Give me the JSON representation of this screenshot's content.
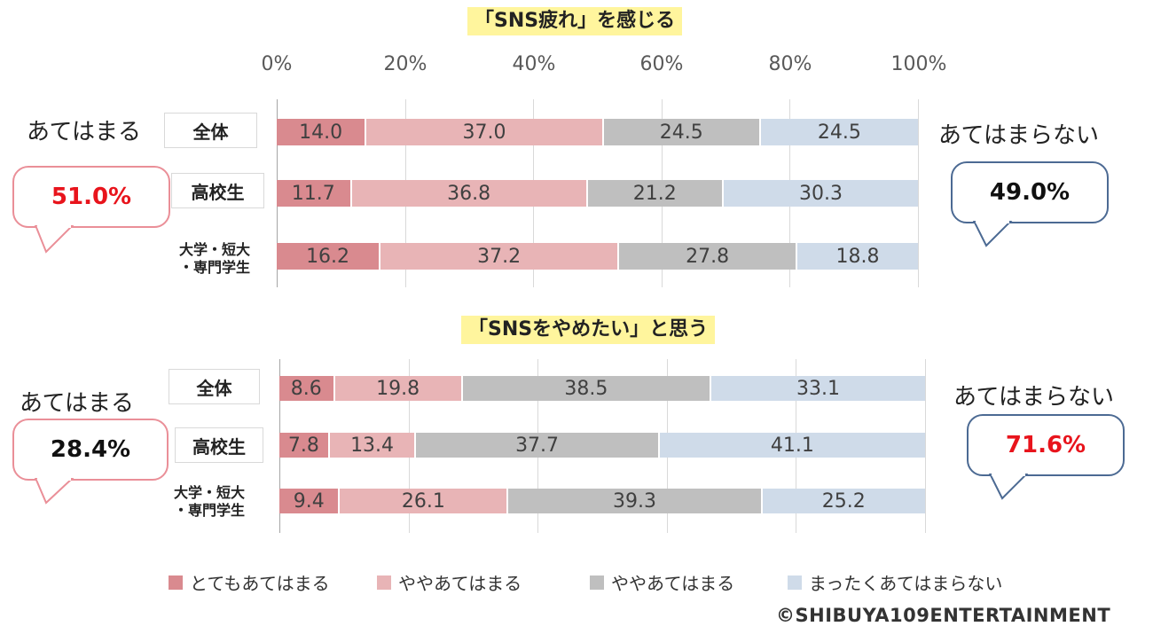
{
  "chart_data": [
    {
      "type": "bar",
      "orientation": "horizontal",
      "stacked": true,
      "title": "「SNS疲れ」を感じる",
      "categories": [
        "全体",
        "高校生",
        "大学・短大\n・専門学生"
      ],
      "series": [
        {
          "name": "とてもあてはまる",
          "values": [
            14.0,
            11.7,
            16.2
          ]
        },
        {
          "name": "ややあてはまる",
          "values": [
            37.0,
            36.8,
            37.2
          ]
        },
        {
          "name": "ややあてはまる",
          "values": [
            24.5,
            21.2,
            27.8
          ]
        },
        {
          "name": "まったくあてはまらない",
          "values": [
            24.5,
            30.3,
            18.8
          ]
        }
      ],
      "xlim": [
        0,
        100
      ],
      "xticks": [
        "0%",
        "20%",
        "40%",
        "60%",
        "80%",
        "100%"
      ],
      "grid": true
    },
    {
      "type": "bar",
      "orientation": "horizontal",
      "stacked": true,
      "title": "「SNSをやめたい」と思う",
      "categories": [
        "全体",
        "高校生",
        "大学・短大\n・専門学生"
      ],
      "series": [
        {
          "name": "とてもあてはまる",
          "values": [
            8.6,
            7.8,
            9.4
          ]
        },
        {
          "name": "ややあてはまる",
          "values": [
            19.8,
            13.4,
            26.1
          ]
        },
        {
          "name": "ややあてはまる",
          "values": [
            38.5,
            37.7,
            39.3
          ]
        },
        {
          "name": "まったくあてはまらない",
          "values": [
            33.1,
            41.1,
            25.2
          ]
        }
      ],
      "xlim": [
        0,
        100
      ],
      "grid": true
    }
  ],
  "colors": [
    "#d98a8f",
    "#e8b4b6",
    "#bfbfbf",
    "#cfdbe9"
  ],
  "chart1": {
    "title": "「SNS疲れ」を感じる",
    "ticks": [
      "0%",
      "20%",
      "40%",
      "60%",
      "80%",
      "100%"
    ],
    "rows": [
      "全体",
      "高校生",
      "大学・短大",
      "・専門学生"
    ],
    "left_word": "あてはまる",
    "left_pct": "51.0%",
    "right_word": "あてはまらない",
    "right_pct": "49.0%"
  },
  "chart2": {
    "title": "「SNSをやめたい」と思う",
    "rows": [
      "全体",
      "高校生",
      "大学・短大",
      "・専門学生"
    ],
    "left_word": "あてはまる",
    "left_pct": "28.4%",
    "right_word": "あてはまらない",
    "right_pct": "71.6%"
  },
  "legend": [
    "とてもあてはまる",
    "ややあてはまる",
    "ややあてはまる",
    "まったくあてはまらない"
  ],
  "copyright": "©SHIBUYA109ENTERTAINMENT"
}
